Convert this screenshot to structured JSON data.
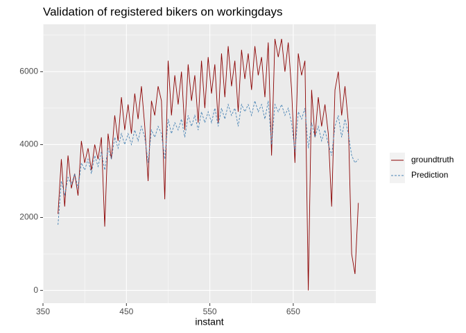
{
  "chart_data": {
    "type": "line",
    "title": "Validation of registered bikers on workingdays",
    "x_label": "instant",
    "xlim": [
      350,
      749
    ],
    "xticks": [
      350,
      450,
      550,
      650
    ],
    "x_minor_ticks": [
      400,
      500,
      600,
      700
    ],
    "ylim": [
      -350,
      7300
    ],
    "yticks": [
      0,
      2000,
      4000,
      6000
    ],
    "y_minor_ticks": [
      1000,
      3000,
      5000,
      7000
    ],
    "grid": true,
    "legend": "right",
    "x": [
      368,
      372,
      376,
      380,
      384,
      388,
      392,
      396,
      400,
      404,
      408,
      412,
      416,
      420,
      424,
      428,
      432,
      436,
      440,
      444,
      448,
      452,
      456,
      460,
      464,
      468,
      472,
      476,
      480,
      484,
      488,
      492,
      496,
      500,
      504,
      508,
      512,
      516,
      520,
      524,
      528,
      532,
      536,
      540,
      544,
      548,
      552,
      556,
      560,
      564,
      568,
      572,
      576,
      580,
      584,
      588,
      592,
      596,
      600,
      604,
      608,
      612,
      616,
      620,
      624,
      628,
      632,
      636,
      640,
      644,
      648,
      652,
      656,
      660,
      664,
      668,
      672,
      676,
      680,
      684,
      688,
      692,
      696,
      700,
      704,
      708,
      712,
      716,
      720,
      724,
      728
    ],
    "series": [
      {
        "name": "groundtruth",
        "color": "#8b0000",
        "dashed": false,
        "values": [
          2100,
          3600,
          2300,
          3700,
          2800,
          3200,
          2600,
          4100,
          3500,
          3900,
          3300,
          4000,
          3600,
          4200,
          1750,
          4300,
          3600,
          4800,
          4100,
          5300,
          4400,
          5100,
          4300,
          5400,
          4700,
          5600,
          4500,
          3000,
          5200,
          4800,
          5600,
          5200,
          2500,
          6300,
          4800,
          5900,
          5100,
          6000,
          4400,
          6200,
          5200,
          5900,
          4600,
          6300,
          5000,
          6400,
          5400,
          6200,
          4600,
          6500,
          5300,
          6700,
          5600,
          6300,
          4900,
          6600,
          5800,
          6500,
          5500,
          6700,
          5900,
          6400,
          5300,
          6800,
          3700,
          6900,
          6400,
          6900,
          6000,
          6800,
          5500,
          3500,
          6500,
          5900,
          6300,
          0,
          5500,
          4200,
          5300,
          4500,
          5100,
          4300,
          2300,
          5500,
          6000,
          4800,
          5600,
          4600,
          1000,
          450,
          2400
        ]
      },
      {
        "name": "Prediction",
        "color": "#4682b4",
        "dashed": true,
        "values": [
          1800,
          3000,
          2600,
          3100,
          2900,
          3200,
          2800,
          3500,
          3300,
          3600,
          3200,
          3700,
          3400,
          3800,
          3300,
          3900,
          3600,
          4200,
          3900,
          4300,
          4000,
          4300,
          4000,
          4400,
          4100,
          4500,
          4200,
          3500,
          4400,
          4200,
          4500,
          4300,
          3600,
          4700,
          4300,
          4600,
          4400,
          4700,
          4200,
          4800,
          4500,
          4800,
          4400,
          4900,
          4600,
          4900,
          4600,
          5000,
          4500,
          5000,
          4700,
          5100,
          4800,
          5000,
          4500,
          5100,
          4900,
          5100,
          4800,
          5200,
          4900,
          5100,
          4700,
          5200,
          4000,
          5100,
          4900,
          5100,
          4800,
          5000,
          4600,
          3800,
          4900,
          4700,
          5000,
          3900,
          4600,
          4200,
          4500,
          4100,
          4400,
          4000,
          3700,
          4500,
          4800,
          4200,
          4700,
          4300,
          3700,
          3500,
          3600
        ]
      }
    ]
  }
}
